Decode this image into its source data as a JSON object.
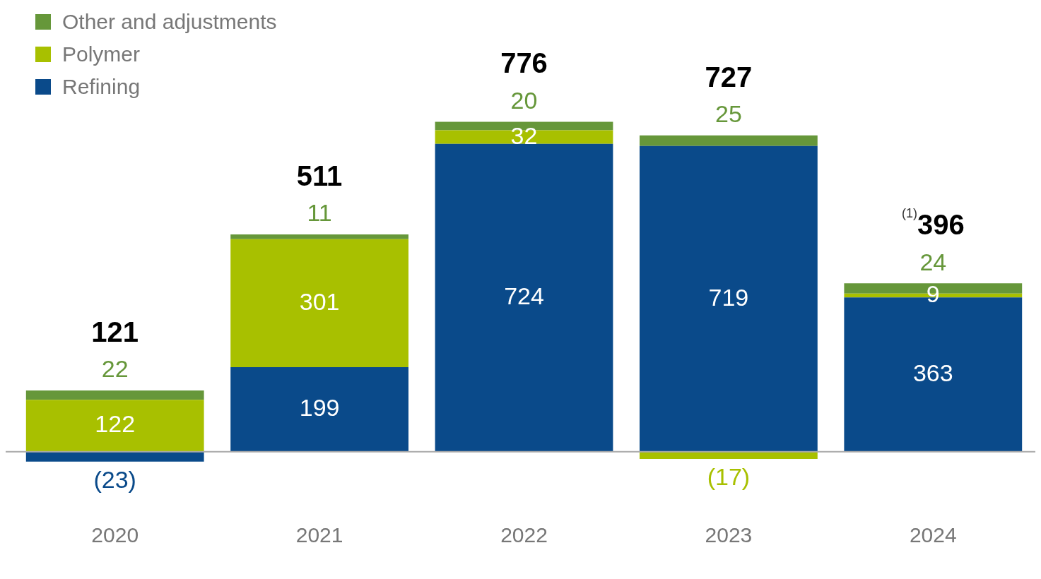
{
  "chart_data": {
    "type": "bar",
    "stacked": true,
    "legend": "top left",
    "categories": [
      "2020",
      "2021",
      "2022",
      "2023",
      "2024"
    ],
    "series": [
      {
        "name": "Refining",
        "color": "#0a4a8a",
        "values": [
          -23,
          199,
          724,
          719,
          363
        ],
        "value_labels": [
          "(23)",
          "199",
          "724",
          "719",
          "363"
        ]
      },
      {
        "name": "Polymer",
        "color": "#a8c000",
        "values": [
          122,
          301,
          32,
          -17,
          9
        ],
        "value_labels": [
          "122",
          "301",
          "32",
          "(17)",
          "9"
        ]
      },
      {
        "name": "Other and adjustments",
        "color": "#66973a",
        "values": [
          22,
          11,
          20,
          25,
          24
        ],
        "value_labels": [
          "22",
          "11",
          "20",
          "25",
          "24"
        ]
      }
    ],
    "totals": [
      "121",
      "511",
      "776",
      "727",
      "$^{(1)}$396"
    ]
  }
}
